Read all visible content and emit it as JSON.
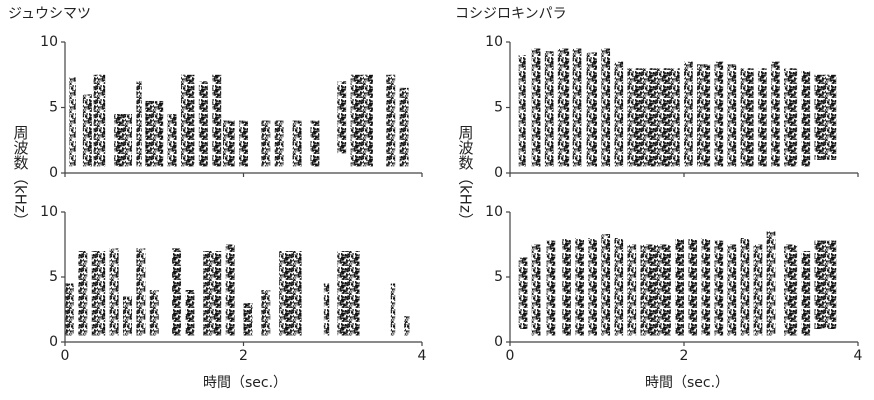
{
  "chart_data": [
    {
      "type": "spectrogram",
      "title": "ジュウシマツ",
      "ylabel": "周波数（kHz）",
      "xlabel": "時間（sec.）",
      "xlim": [
        0,
        4
      ],
      "xticks": [
        0,
        2,
        4
      ],
      "ylim": [
        0,
        10
      ],
      "yticks": [
        0,
        5,
        10
      ],
      "panels": [
        {
          "syllables": [
            [
              0.05,
              0.12,
              0.5,
              7.3
            ],
            [
              0.2,
              0.3,
              0.5,
              6
            ],
            [
              0.32,
              0.45,
              0.5,
              7.5
            ],
            [
              0.55,
              0.75,
              0.5,
              4.5
            ],
            [
              0.8,
              0.86,
              0.5,
              7
            ],
            [
              0.9,
              1.1,
              0.5,
              5.5
            ],
            [
              1.15,
              1.25,
              0.5,
              4.5
            ],
            [
              1.3,
              1.45,
              0.5,
              7.5
            ],
            [
              1.5,
              1.6,
              0.5,
              7
            ],
            [
              1.65,
              1.75,
              0.5,
              7.5
            ],
            [
              1.77,
              1.9,
              0.5,
              4
            ],
            [
              1.95,
              2.05,
              0.5,
              4
            ],
            [
              2.2,
              2.3,
              0.5,
              4
            ],
            [
              2.35,
              2.45,
              0.5,
              4
            ],
            [
              2.55,
              2.65,
              0.5,
              4
            ],
            [
              2.75,
              2.85,
              0.5,
              4
            ],
            [
              3.05,
              3.15,
              1.5,
              7
            ],
            [
              3.2,
              3.45,
              0.5,
              7.5
            ],
            [
              3.6,
              3.7,
              0.5,
              7.5
            ],
            [
              3.75,
              3.85,
              0.5,
              6.5
            ]
          ]
        },
        {
          "syllables": [
            [
              0.0,
              0.1,
              0.5,
              4.5
            ],
            [
              0.15,
              0.25,
              0.5,
              7
            ],
            [
              0.3,
              0.45,
              0.5,
              7
            ],
            [
              0.5,
              0.6,
              0.5,
              7.2
            ],
            [
              0.65,
              0.75,
              0.5,
              3.5
            ],
            [
              0.8,
              0.9,
              0.5,
              7.2
            ],
            [
              0.95,
              1.05,
              0.5,
              4
            ],
            [
              1.2,
              1.3,
              0.5,
              7.2
            ],
            [
              1.35,
              1.45,
              0.5,
              4
            ],
            [
              1.55,
              1.75,
              0.5,
              7
            ],
            [
              1.8,
              1.9,
              0.5,
              7.5
            ],
            [
              2.0,
              2.1,
              0.5,
              3
            ],
            [
              2.2,
              2.3,
              0.5,
              4
            ],
            [
              2.4,
              2.65,
              0.5,
              7
            ],
            [
              2.9,
              2.96,
              0.5,
              4.5
            ],
            [
              3.05,
              3.3,
              0.5,
              7
            ],
            [
              3.65,
              3.7,
              0.5,
              4.5
            ],
            [
              3.8,
              3.86,
              0.5,
              2
            ]
          ]
        }
      ]
    },
    {
      "type": "spectrogram",
      "title": "コシジロキンパラ",
      "ylabel": "周波数（kHz）",
      "xlabel": "時間（sec.）",
      "xlim": [
        0,
        4
      ],
      "xticks": [
        0,
        2,
        4
      ],
      "ylim": [
        0,
        10
      ],
      "yticks": [
        0,
        5,
        10
      ],
      "panels": [
        {
          "syllables": [
            [
              0.1,
              0.18,
              0.5,
              9
            ],
            [
              0.25,
              0.35,
              0.5,
              9.5
            ],
            [
              0.4,
              0.5,
              0.5,
              9.3
            ],
            [
              0.55,
              0.68,
              0.5,
              9.5
            ],
            [
              0.72,
              0.82,
              0.5,
              9.5
            ],
            [
              0.88,
              1.0,
              0.5,
              9.2
            ],
            [
              1.05,
              1.15,
              0.5,
              9.5
            ],
            [
              1.2,
              1.3,
              0.5,
              8.5
            ],
            [
              1.35,
              1.95,
              0.5,
              8
            ],
            [
              2.0,
              2.1,
              0.5,
              8.5
            ],
            [
              2.15,
              2.3,
              0.5,
              8.3
            ],
            [
              2.35,
              2.45,
              0.5,
              8.5
            ],
            [
              2.5,
              2.6,
              0.5,
              8.3
            ],
            [
              2.65,
              2.8,
              0.5,
              8
            ],
            [
              2.85,
              2.95,
              0.5,
              8
            ],
            [
              3.0,
              3.1,
              0.5,
              8.5
            ],
            [
              3.15,
              3.3,
              0.5,
              8
            ],
            [
              3.35,
              3.45,
              0.5,
              7.8
            ],
            [
              3.5,
              3.75,
              1,
              7.5
            ]
          ]
        },
        {
          "syllables": [
            [
              0.1,
              0.2,
              1,
              6.5
            ],
            [
              0.25,
              0.35,
              0.5,
              7.5
            ],
            [
              0.42,
              0.52,
              0.5,
              7.8
            ],
            [
              0.6,
              0.7,
              0.5,
              8
            ],
            [
              0.75,
              0.85,
              0.5,
              8
            ],
            [
              0.9,
              1.0,
              0.5,
              8
            ],
            [
              1.05,
              1.15,
              0.5,
              8.3
            ],
            [
              1.2,
              1.3,
              0.5,
              8
            ],
            [
              1.35,
              1.45,
              0.5,
              7.5
            ],
            [
              1.5,
              1.85,
              0.5,
              7.5
            ],
            [
              1.9,
              2.0,
              0.5,
              8
            ],
            [
              2.05,
              2.15,
              0.5,
              8
            ],
            [
              2.2,
              2.3,
              0.5,
              8
            ],
            [
              2.35,
              2.45,
              0.5,
              7.8
            ],
            [
              2.5,
              2.6,
              0.5,
              7.5
            ],
            [
              2.65,
              2.75,
              0.5,
              8
            ],
            [
              2.8,
              2.9,
              0.5,
              7.5
            ],
            [
              2.95,
              3.05,
              0.5,
              8.5
            ],
            [
              3.15,
              3.3,
              0.5,
              7.5
            ],
            [
              3.35,
              3.45,
              0.5,
              7
            ],
            [
              3.5,
              3.75,
              1,
              7.8
            ]
          ]
        }
      ]
    }
  ]
}
